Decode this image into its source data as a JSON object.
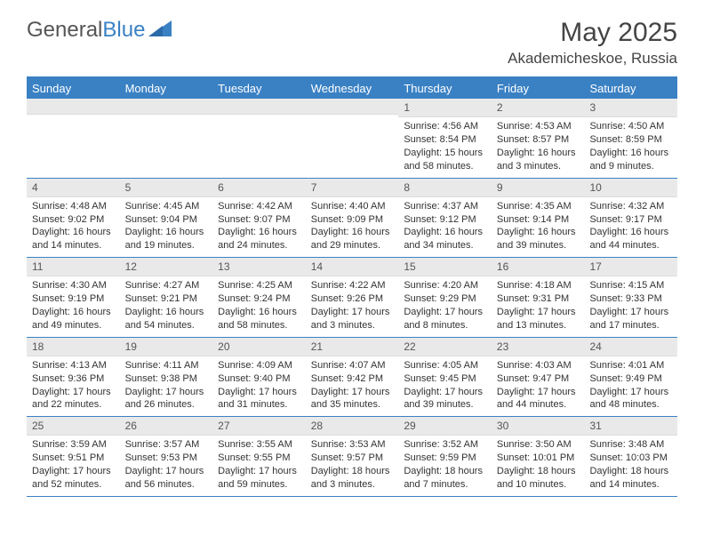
{
  "logo": {
    "text1": "General",
    "text2": "Blue"
  },
  "title": "May 2025",
  "location": "Akademicheskoe, Russia",
  "colors": {
    "header_bg": "#3a81c4",
    "header_text": "#ffffff",
    "daynum_bg": "#e9e9e9",
    "border": "#3a81c4",
    "text": "#333333"
  },
  "day_labels": [
    "Sunday",
    "Monday",
    "Tuesday",
    "Wednesday",
    "Thursday",
    "Friday",
    "Saturday"
  ],
  "weeks": [
    [
      {
        "day": "",
        "sunrise": "",
        "sunset": "",
        "daylight": ""
      },
      {
        "day": "",
        "sunrise": "",
        "sunset": "",
        "daylight": ""
      },
      {
        "day": "",
        "sunrise": "",
        "sunset": "",
        "daylight": ""
      },
      {
        "day": "",
        "sunrise": "",
        "sunset": "",
        "daylight": ""
      },
      {
        "day": "1",
        "sunrise": "Sunrise: 4:56 AM",
        "sunset": "Sunset: 8:54 PM",
        "daylight": "Daylight: 15 hours and 58 minutes."
      },
      {
        "day": "2",
        "sunrise": "Sunrise: 4:53 AM",
        "sunset": "Sunset: 8:57 PM",
        "daylight": "Daylight: 16 hours and 3 minutes."
      },
      {
        "day": "3",
        "sunrise": "Sunrise: 4:50 AM",
        "sunset": "Sunset: 8:59 PM",
        "daylight": "Daylight: 16 hours and 9 minutes."
      }
    ],
    [
      {
        "day": "4",
        "sunrise": "Sunrise: 4:48 AM",
        "sunset": "Sunset: 9:02 PM",
        "daylight": "Daylight: 16 hours and 14 minutes."
      },
      {
        "day": "5",
        "sunrise": "Sunrise: 4:45 AM",
        "sunset": "Sunset: 9:04 PM",
        "daylight": "Daylight: 16 hours and 19 minutes."
      },
      {
        "day": "6",
        "sunrise": "Sunrise: 4:42 AM",
        "sunset": "Sunset: 9:07 PM",
        "daylight": "Daylight: 16 hours and 24 minutes."
      },
      {
        "day": "7",
        "sunrise": "Sunrise: 4:40 AM",
        "sunset": "Sunset: 9:09 PM",
        "daylight": "Daylight: 16 hours and 29 minutes."
      },
      {
        "day": "8",
        "sunrise": "Sunrise: 4:37 AM",
        "sunset": "Sunset: 9:12 PM",
        "daylight": "Daylight: 16 hours and 34 minutes."
      },
      {
        "day": "9",
        "sunrise": "Sunrise: 4:35 AM",
        "sunset": "Sunset: 9:14 PM",
        "daylight": "Daylight: 16 hours and 39 minutes."
      },
      {
        "day": "10",
        "sunrise": "Sunrise: 4:32 AM",
        "sunset": "Sunset: 9:17 PM",
        "daylight": "Daylight: 16 hours and 44 minutes."
      }
    ],
    [
      {
        "day": "11",
        "sunrise": "Sunrise: 4:30 AM",
        "sunset": "Sunset: 9:19 PM",
        "daylight": "Daylight: 16 hours and 49 minutes."
      },
      {
        "day": "12",
        "sunrise": "Sunrise: 4:27 AM",
        "sunset": "Sunset: 9:21 PM",
        "daylight": "Daylight: 16 hours and 54 minutes."
      },
      {
        "day": "13",
        "sunrise": "Sunrise: 4:25 AM",
        "sunset": "Sunset: 9:24 PM",
        "daylight": "Daylight: 16 hours and 58 minutes."
      },
      {
        "day": "14",
        "sunrise": "Sunrise: 4:22 AM",
        "sunset": "Sunset: 9:26 PM",
        "daylight": "Daylight: 17 hours and 3 minutes."
      },
      {
        "day": "15",
        "sunrise": "Sunrise: 4:20 AM",
        "sunset": "Sunset: 9:29 PM",
        "daylight": "Daylight: 17 hours and 8 minutes."
      },
      {
        "day": "16",
        "sunrise": "Sunrise: 4:18 AM",
        "sunset": "Sunset: 9:31 PM",
        "daylight": "Daylight: 17 hours and 13 minutes."
      },
      {
        "day": "17",
        "sunrise": "Sunrise: 4:15 AM",
        "sunset": "Sunset: 9:33 PM",
        "daylight": "Daylight: 17 hours and 17 minutes."
      }
    ],
    [
      {
        "day": "18",
        "sunrise": "Sunrise: 4:13 AM",
        "sunset": "Sunset: 9:36 PM",
        "daylight": "Daylight: 17 hours and 22 minutes."
      },
      {
        "day": "19",
        "sunrise": "Sunrise: 4:11 AM",
        "sunset": "Sunset: 9:38 PM",
        "daylight": "Daylight: 17 hours and 26 minutes."
      },
      {
        "day": "20",
        "sunrise": "Sunrise: 4:09 AM",
        "sunset": "Sunset: 9:40 PM",
        "daylight": "Daylight: 17 hours and 31 minutes."
      },
      {
        "day": "21",
        "sunrise": "Sunrise: 4:07 AM",
        "sunset": "Sunset: 9:42 PM",
        "daylight": "Daylight: 17 hours and 35 minutes."
      },
      {
        "day": "22",
        "sunrise": "Sunrise: 4:05 AM",
        "sunset": "Sunset: 9:45 PM",
        "daylight": "Daylight: 17 hours and 39 minutes."
      },
      {
        "day": "23",
        "sunrise": "Sunrise: 4:03 AM",
        "sunset": "Sunset: 9:47 PM",
        "daylight": "Daylight: 17 hours and 44 minutes."
      },
      {
        "day": "24",
        "sunrise": "Sunrise: 4:01 AM",
        "sunset": "Sunset: 9:49 PM",
        "daylight": "Daylight: 17 hours and 48 minutes."
      }
    ],
    [
      {
        "day": "25",
        "sunrise": "Sunrise: 3:59 AM",
        "sunset": "Sunset: 9:51 PM",
        "daylight": "Daylight: 17 hours and 52 minutes."
      },
      {
        "day": "26",
        "sunrise": "Sunrise: 3:57 AM",
        "sunset": "Sunset: 9:53 PM",
        "daylight": "Daylight: 17 hours and 56 minutes."
      },
      {
        "day": "27",
        "sunrise": "Sunrise: 3:55 AM",
        "sunset": "Sunset: 9:55 PM",
        "daylight": "Daylight: 17 hours and 59 minutes."
      },
      {
        "day": "28",
        "sunrise": "Sunrise: 3:53 AM",
        "sunset": "Sunset: 9:57 PM",
        "daylight": "Daylight: 18 hours and 3 minutes."
      },
      {
        "day": "29",
        "sunrise": "Sunrise: 3:52 AM",
        "sunset": "Sunset: 9:59 PM",
        "daylight": "Daylight: 18 hours and 7 minutes."
      },
      {
        "day": "30",
        "sunrise": "Sunrise: 3:50 AM",
        "sunset": "Sunset: 10:01 PM",
        "daylight": "Daylight: 18 hours and 10 minutes."
      },
      {
        "day": "31",
        "sunrise": "Sunrise: 3:48 AM",
        "sunset": "Sunset: 10:03 PM",
        "daylight": "Daylight: 18 hours and 14 minutes."
      }
    ]
  ]
}
